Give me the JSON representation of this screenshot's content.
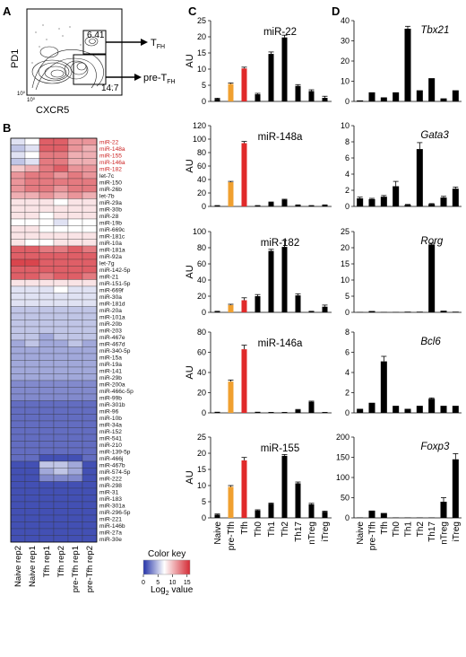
{
  "panel_letters": [
    "A",
    "B",
    "C",
    "D"
  ],
  "colors": {
    "bar_black": "#000000",
    "bar_orange": "#f0a030",
    "bar_red": "#e02a2a",
    "hm_low": "#2433a8",
    "hm_mid": "#ffffff",
    "hm_high": "#d42a34",
    "highlight_label": "#cc2222"
  },
  "flow": {
    "ylabel": "PD1",
    "xlabel": "CXCR5",
    "tick_low_y": "10",
    "tick_low_y_sup": "0",
    "tick_low_x": "10",
    "tick_low_x_sup": "0",
    "gate_tfh_value": "6.41",
    "gate_pretfh_value": "14.7",
    "arrow_tfh_label": "T",
    "arrow_tfh_sub": "FH",
    "arrow_pretfh_label": "pre-T",
    "arrow_pretfh_sub": "FH"
  },
  "heatmap": {
    "columns": [
      "Naive rep2",
      "Naive rep1",
      "Tfh rep1",
      "Tfh rep2",
      "pre-Tfh rep1",
      "pre-Tfh rep2"
    ],
    "highlighted_count": 5,
    "rows": [
      {
        "name": "miR-22",
        "v": [
          6,
          7,
          13,
          13,
          11,
          11
        ]
      },
      {
        "name": "miR-148a",
        "v": [
          5,
          6,
          13,
          13,
          11,
          10
        ]
      },
      {
        "name": "miR-155",
        "v": [
          6,
          7,
          12,
          12,
          10,
          10
        ]
      },
      {
        "name": "miR-146a",
        "v": [
          5,
          6,
          12,
          12,
          10,
          10
        ]
      },
      {
        "name": "miR-182",
        "v": [
          9,
          10,
          12,
          13,
          11,
          11
        ]
      },
      {
        "name": "let-7c",
        "v": [
          11,
          12,
          12,
          11,
          12,
          11
        ]
      },
      {
        "name": "miR-150",
        "v": [
          11,
          12,
          12,
          12,
          12,
          12
        ]
      },
      {
        "name": "miR-26b",
        "v": [
          11,
          12,
          12,
          11,
          12,
          12
        ]
      },
      {
        "name": "let-7b",
        "v": [
          10,
          10,
          11,
          10,
          11,
          10
        ]
      },
      {
        "name": "miR-29a",
        "v": [
          8,
          8,
          8,
          7,
          8,
          8
        ]
      },
      {
        "name": "miR-30b",
        "v": [
          8,
          8,
          8,
          8,
          8,
          8
        ]
      },
      {
        "name": "miR-28",
        "v": [
          8,
          8,
          7,
          8,
          8,
          8
        ]
      },
      {
        "name": "miR-19b",
        "v": [
          7,
          7,
          7,
          6,
          7,
          7
        ]
      },
      {
        "name": "miR-669c",
        "v": [
          8,
          8,
          7,
          7,
          7,
          7
        ]
      },
      {
        "name": "miR-181c",
        "v": [
          8,
          8,
          8,
          8,
          8,
          8
        ]
      },
      {
        "name": "miR-10a",
        "v": [
          8,
          7,
          7,
          8,
          8,
          8
        ]
      },
      {
        "name": "miR-181a",
        "v": [
          13,
          13,
          12,
          12,
          13,
          12
        ]
      },
      {
        "name": "miR-92a",
        "v": [
          13,
          13,
          13,
          13,
          13,
          13
        ]
      },
      {
        "name": "let-7g",
        "v": [
          14,
          14,
          13,
          13,
          13,
          13
        ]
      },
      {
        "name": "miR-142-5p",
        "v": [
          13,
          13,
          13,
          13,
          13,
          13
        ]
      },
      {
        "name": "miR-21",
        "v": [
          13,
          13,
          12,
          13,
          13,
          12
        ]
      },
      {
        "name": "miR-151-5p",
        "v": [
          8,
          8,
          8,
          8,
          8,
          8
        ]
      },
      {
        "name": "miR-669f",
        "v": [
          6,
          6,
          6,
          7,
          6,
          6
        ]
      },
      {
        "name": "miR-30a",
        "v": [
          6,
          6,
          6,
          6,
          6,
          6
        ]
      },
      {
        "name": "miR-181d",
        "v": [
          6,
          6,
          6,
          6,
          6,
          6
        ]
      },
      {
        "name": "miR-20a",
        "v": [
          5,
          5,
          5,
          5,
          5,
          5
        ]
      },
      {
        "name": "miR-101a",
        "v": [
          5,
          5,
          5,
          5,
          5,
          5
        ]
      },
      {
        "name": "miR-20b",
        "v": [
          5,
          5,
          5,
          5,
          5,
          5
        ]
      },
      {
        "name": "miR-203",
        "v": [
          5,
          5,
          5,
          5,
          5,
          5
        ]
      },
      {
        "name": "miR-467e",
        "v": [
          5,
          5,
          4,
          5,
          5,
          5
        ]
      },
      {
        "name": "miR-467d",
        "v": [
          4,
          5,
          4,
          4,
          5,
          4
        ]
      },
      {
        "name": "miR-340-5p",
        "v": [
          4,
          4,
          4,
          4,
          4,
          4
        ]
      },
      {
        "name": "miR-15a",
        "v": [
          4,
          4,
          4,
          4,
          4,
          4
        ]
      },
      {
        "name": "miR-19a",
        "v": [
          4,
          4,
          4,
          4,
          4,
          4
        ]
      },
      {
        "name": "miR-141",
        "v": [
          4,
          4,
          4,
          4,
          4,
          4
        ]
      },
      {
        "name": "miR-29b",
        "v": [
          4,
          4,
          4,
          4,
          4,
          4
        ]
      },
      {
        "name": "miR-200a",
        "v": [
          3,
          3,
          3,
          3,
          3,
          3
        ]
      },
      {
        "name": "miR-466c-5p",
        "v": [
          3,
          3,
          3,
          3,
          3,
          3
        ]
      },
      {
        "name": "miR-99b",
        "v": [
          3,
          3,
          3,
          3,
          3,
          3
        ]
      },
      {
        "name": "miR-301b",
        "v": [
          2,
          2,
          2,
          2,
          2,
          2
        ]
      },
      {
        "name": "miR-96",
        "v": [
          2,
          2,
          2,
          2,
          2,
          2
        ]
      },
      {
        "name": "miR-10b",
        "v": [
          2,
          2,
          2,
          2,
          2,
          2
        ]
      },
      {
        "name": "miR-34a",
        "v": [
          2,
          2,
          2,
          2,
          2,
          2
        ]
      },
      {
        "name": "miR-152",
        "v": [
          2,
          2,
          2,
          2,
          2,
          2
        ]
      },
      {
        "name": "miR-541",
        "v": [
          2,
          2,
          2,
          2,
          2,
          2
        ]
      },
      {
        "name": "miR-210",
        "v": [
          2,
          2,
          2,
          2,
          2,
          2
        ]
      },
      {
        "name": "miR-139-5p",
        "v": [
          2,
          2,
          2,
          2,
          2,
          2
        ]
      },
      {
        "name": "miR-466j",
        "v": [
          2,
          2,
          1,
          1,
          1,
          2
        ]
      },
      {
        "name": "miR-467b",
        "v": [
          1,
          1,
          5,
          5,
          4,
          1
        ]
      },
      {
        "name": "miR-574-5p",
        "v": [
          1,
          1,
          4,
          5,
          4,
          1
        ]
      },
      {
        "name": "miR-222",
        "v": [
          1,
          1,
          3,
          3,
          3,
          1
        ]
      },
      {
        "name": "miR-298",
        "v": [
          1,
          1,
          1,
          1,
          1,
          1
        ]
      },
      {
        "name": "miR-31",
        "v": [
          1,
          1,
          1,
          1,
          1,
          1
        ]
      },
      {
        "name": "miR-183",
        "v": [
          1,
          1,
          1,
          1,
          1,
          1
        ]
      },
      {
        "name": "miR-301a",
        "v": [
          1,
          1,
          1,
          1,
          1,
          1
        ]
      },
      {
        "name": "miR-296-5p",
        "v": [
          1,
          1,
          1,
          1,
          1,
          1
        ]
      },
      {
        "name": "miR-221",
        "v": [
          1,
          1,
          1,
          1,
          1,
          1
        ]
      },
      {
        "name": "miR-146b",
        "v": [
          1,
          1,
          1,
          1,
          1,
          1
        ]
      },
      {
        "name": "miR-27a",
        "v": [
          1,
          1,
          1,
          1,
          1,
          1
        ]
      },
      {
        "name": "miR-30e",
        "v": [
          1,
          1,
          1,
          1,
          1,
          1
        ]
      }
    ],
    "color_key_title": "Color key",
    "color_key_ticks": [
      "0",
      "5",
      "10",
      "15"
    ],
    "color_key_label": "Log",
    "color_key_label_sub": "2",
    "color_key_label_suffix": " value"
  },
  "chart_data": [
    {
      "type": "bar",
      "panel": "C",
      "title": "miR-22",
      "ylabel": "AU",
      "ylim": [
        0,
        25
      ],
      "yticks": [
        0,
        5,
        10,
        15,
        20,
        25
      ],
      "categories": [
        "Naive",
        "pre-Tfh",
        "Tfh",
        "Th0",
        "Th1",
        "Th2",
        "Th17",
        "nTreg",
        "iTreg"
      ],
      "values": [
        0.8,
        5.4,
        10.2,
        2.2,
        14.7,
        19.8,
        4.8,
        3.2,
        1.1
      ],
      "errors": [
        0.2,
        0.3,
        0.4,
        0.3,
        0.6,
        0.7,
        0.4,
        0.4,
        0.5
      ],
      "colors": [
        "black",
        "orange",
        "red",
        "black",
        "black",
        "black",
        "black",
        "black",
        "black"
      ]
    },
    {
      "type": "bar",
      "panel": "C",
      "title": "miR-148a",
      "ylabel": "AU",
      "ylim": [
        0,
        120
      ],
      "yticks": [
        0,
        20,
        40,
        60,
        80,
        100,
        120
      ],
      "categories": [
        "Naive",
        "pre-Tfh",
        "Tfh",
        "Th0",
        "Th1",
        "Th2",
        "Th17",
        "nTreg",
        "iTreg"
      ],
      "values": [
        1,
        36,
        94,
        1,
        6,
        10,
        2,
        1,
        2
      ],
      "errors": [
        0.3,
        1.2,
        2.5,
        0.3,
        0.6,
        0.7,
        0.3,
        0.3,
        0.3
      ],
      "colors": [
        "black",
        "orange",
        "red",
        "black",
        "black",
        "black",
        "black",
        "black",
        "black"
      ]
    },
    {
      "type": "bar",
      "panel": "C",
      "title": "miR-182",
      "ylabel": "AU",
      "ylim": [
        0,
        100
      ],
      "yticks": [
        0,
        20,
        40,
        60,
        80,
        100
      ],
      "categories": [
        "Naive",
        "pre-Tfh",
        "Tfh",
        "Th0",
        "Th1",
        "Th2",
        "Th17",
        "nTreg",
        "iTreg"
      ],
      "values": [
        1,
        9,
        15,
        20,
        76,
        81,
        21,
        1,
        7
      ],
      "errors": [
        0.3,
        1,
        3,
        2,
        2,
        8,
        2,
        0.3,
        2
      ],
      "colors": [
        "black",
        "orange",
        "red",
        "black",
        "black",
        "black",
        "black",
        "black",
        "black"
      ]
    },
    {
      "type": "bar",
      "panel": "C",
      "title": "miR-146a",
      "ylabel": "AU",
      "ylim": [
        0,
        80
      ],
      "yticks": [
        0,
        20,
        40,
        60,
        80
      ],
      "categories": [
        "Naive",
        "pre-Tfh",
        "Tfh",
        "Th0",
        "Th1",
        "Th2",
        "Th17",
        "nTreg",
        "iTreg"
      ],
      "values": [
        0.5,
        31,
        63,
        0.5,
        0.3,
        0.3,
        3,
        11,
        0.3
      ],
      "errors": [
        0.2,
        1.5,
        4,
        0.2,
        0.2,
        0.2,
        0.4,
        0.6,
        0.2
      ],
      "colors": [
        "black",
        "orange",
        "red",
        "black",
        "black",
        "black",
        "black",
        "black",
        "black"
      ]
    },
    {
      "type": "bar",
      "panel": "C",
      "title": "miR-155",
      "ylabel": "AU",
      "ylim": [
        0,
        25
      ],
      "yticks": [
        0,
        5,
        10,
        15,
        20,
        25
      ],
      "categories": [
        "Naive",
        "pre-Tfh",
        "Tfh",
        "Th0",
        "Th1",
        "Th2",
        "Th17",
        "nTreg",
        "iTreg"
      ],
      "values": [
        1,
        9.6,
        17.8,
        2.3,
        4.4,
        19.2,
        10.7,
        4.2,
        1.9
      ],
      "errors": [
        0.2,
        0.4,
        0.9,
        0.2,
        0.2,
        0.4,
        0.4,
        0.3,
        0.2
      ],
      "colors": [
        "black",
        "orange",
        "red",
        "black",
        "black",
        "black",
        "black",
        "black",
        "black"
      ]
    },
    {
      "type": "bar",
      "panel": "D",
      "title": "Tbx21",
      "ylim": [
        0,
        40
      ],
      "yticks": [
        0,
        10,
        20,
        30,
        40
      ],
      "categories": [
        "Naive",
        "pre-Tfh",
        "Tfh",
        "Th0",
        "Th1",
        "Th2",
        "Th17",
        "nTreg",
        "iTreg"
      ],
      "values": [
        0.5,
        4.5,
        2,
        4.5,
        36,
        5.5,
        11.5,
        1.5,
        5.5
      ],
      "errors": [
        0,
        0,
        0,
        0,
        1.2,
        0,
        0,
        0,
        0
      ],
      "colors": [
        "black",
        "black",
        "black",
        "black",
        "black",
        "black",
        "black",
        "black",
        "black"
      ]
    },
    {
      "type": "bar",
      "panel": "D",
      "title": "Gata3",
      "ylim": [
        0,
        10
      ],
      "yticks": [
        0,
        2,
        4,
        6,
        8,
        10
      ],
      "categories": [
        "Naive",
        "pre-Tfh",
        "Tfh",
        "Th0",
        "Th1",
        "Th2",
        "Th17",
        "nTreg",
        "iTreg"
      ],
      "values": [
        1,
        0.9,
        1.2,
        2.5,
        0.2,
        7.1,
        0.3,
        1.1,
        2.2
      ],
      "errors": [
        0.15,
        0.1,
        0.15,
        0.6,
        0.05,
        0.8,
        0.05,
        0.15,
        0.2
      ],
      "colors": [
        "black",
        "black",
        "black",
        "black",
        "black",
        "black",
        "black",
        "black",
        "black"
      ]
    },
    {
      "type": "bar",
      "panel": "D",
      "title": "Rorg",
      "ylim": [
        0,
        25
      ],
      "yticks": [
        0,
        5,
        10,
        15,
        20,
        25
      ],
      "categories": [
        "Naive",
        "pre-Tfh",
        "Tfh",
        "Th0",
        "Th1",
        "Th2",
        "Th17",
        "nTreg",
        "iTreg"
      ],
      "values": [
        0.1,
        0.4,
        0.1,
        0.1,
        0.2,
        0.2,
        21,
        0.5,
        0.2
      ],
      "errors": [
        0,
        0,
        0,
        0,
        0,
        0,
        0.4,
        0,
        0
      ],
      "colors": [
        "black",
        "black",
        "black",
        "black",
        "black",
        "black",
        "black",
        "black",
        "black"
      ]
    },
    {
      "type": "bar",
      "panel": "D",
      "title": "Bcl6",
      "ylim": [
        0,
        8
      ],
      "yticks": [
        0,
        2,
        4,
        6,
        8
      ],
      "categories": [
        "Naive",
        "pre-Tfh",
        "Tfh",
        "Th0",
        "Th1",
        "Th2",
        "Th17",
        "nTreg",
        "iTreg"
      ],
      "values": [
        0.4,
        1,
        5.1,
        0.7,
        0.4,
        0.7,
        1.4,
        0.7,
        0.7
      ],
      "errors": [
        0,
        0,
        0.5,
        0,
        0,
        0,
        0.08,
        0,
        0
      ],
      "colors": [
        "black",
        "black",
        "black",
        "black",
        "black",
        "black",
        "black",
        "black",
        "black"
      ]
    },
    {
      "type": "bar",
      "panel": "D",
      "title": "Foxp3",
      "ylim": [
        0,
        200
      ],
      "yticks": [
        0,
        50,
        100,
        150,
        200
      ],
      "categories": [
        "Naive",
        "pre-Tfh",
        "Tfh",
        "Th0",
        "Th1",
        "Th2",
        "Th17",
        "nTreg",
        "iTreg"
      ],
      "values": [
        1,
        18,
        12,
        1,
        1,
        1,
        1,
        40,
        145
      ],
      "errors": [
        0,
        0,
        0,
        0,
        0,
        0,
        0,
        10,
        14
      ],
      "colors": [
        "black",
        "black",
        "black",
        "black",
        "black",
        "black",
        "black",
        "black",
        "black"
      ]
    }
  ]
}
